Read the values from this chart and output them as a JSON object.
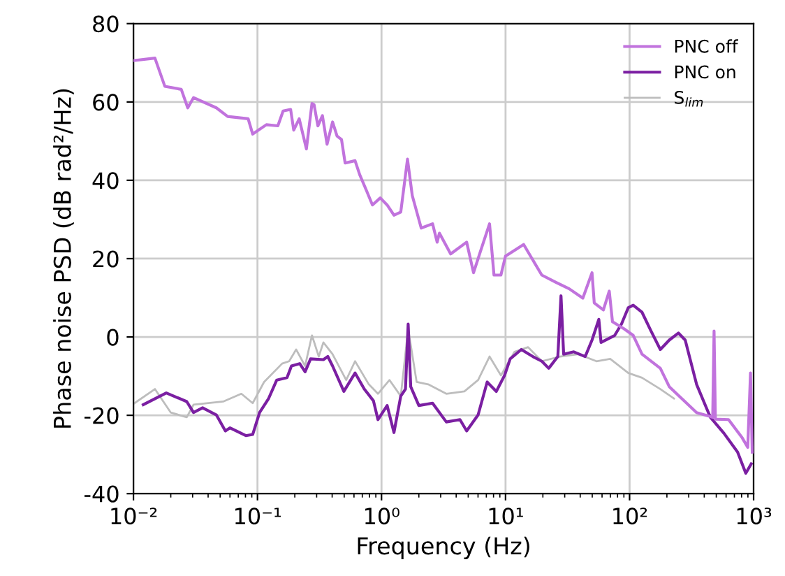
{
  "chart_data": {
    "type": "line",
    "xlabel": "Frequency (Hz)",
    "ylabel": "Phase noise PSD (dB rad²/Hz)",
    "log": "x",
    "grid": true,
    "legend": "top right",
    "marker": "none",
    "line_style": "solid",
    "xlim": [
      0.01,
      1000
    ],
    "ylim": [
      -40,
      80
    ],
    "xticks": [
      {
        "value": 0.01,
        "label": "10⁻²"
      },
      {
        "value": 0.1,
        "label": "10⁻¹"
      },
      {
        "value": 1,
        "label": "10⁰"
      },
      {
        "value": 10,
        "label": "10¹"
      },
      {
        "value": 100,
        "label": "10²"
      },
      {
        "value": 1000,
        "label": "10³"
      }
    ],
    "yticks": [
      -40,
      -20,
      0,
      20,
      40,
      60,
      80
    ],
    "series": [
      {
        "name": "PNC off",
        "color": "#c173dd",
        "x": [
          0.0102,
          0.0149,
          0.0179,
          0.0243,
          0.0274,
          0.0305,
          0.0466,
          0.0575,
          0.0841,
          0.0915,
          0.118,
          0.146,
          0.161,
          0.185,
          0.196,
          0.217,
          0.248,
          0.275,
          0.286,
          0.307,
          0.334,
          0.364,
          0.403,
          0.438,
          0.476,
          0.509,
          0.612,
          0.668,
          0.758,
          0.845,
          0.977,
          1.11,
          1.26,
          1.43,
          1.62,
          1.77,
          2.09,
          2.58,
          2.81,
          2.93,
          3.61,
          4.86,
          5.52,
          6.27,
          7.43,
          8.07,
          9.18,
          9.98,
          14.0,
          19.6,
          25.3,
          32.6,
          42.0,
          49.8,
          51.9,
          61.5,
          68.6,
          72.8,
          90.0,
          107,
          126,
          177,
          209,
          347,
          468,
          480,
          492,
          628,
          811,
          897,
          944,
          975
        ],
        "values": [
          70.6,
          71.2,
          64.0,
          63.2,
          58.5,
          61.1,
          58.5,
          56.3,
          55.7,
          51.8,
          54.2,
          53.9,
          57.7,
          58.1,
          52.8,
          55.7,
          48.0,
          59.6,
          59.3,
          53.9,
          56.5,
          49.2,
          54.9,
          51.3,
          50.4,
          44.4,
          45.0,
          41.4,
          37.3,
          33.7,
          35.5,
          33.7,
          31.1,
          31.9,
          45.4,
          36.1,
          27.8,
          28.9,
          24.2,
          26.5,
          21.2,
          24.2,
          16.4,
          21.8,
          28.9,
          15.8,
          15.8,
          20.6,
          23.6,
          15.8,
          14.0,
          12.3,
          9.9,
          16.4,
          8.7,
          6.9,
          11.7,
          3.9,
          2.1,
          0.4,
          -4.4,
          -8.0,
          -12.7,
          -19.3,
          -20.5,
          1.5,
          -21.0,
          -21.1,
          -25.8,
          -28.2,
          -9.2,
          -29.4
        ]
      },
      {
        "name": "PNC on",
        "color": "#7b1fa2",
        "x": [
          0.012,
          0.0184,
          0.0269,
          0.0305,
          0.0361,
          0.0466,
          0.0551,
          0.0601,
          0.0806,
          0.0915,
          0.104,
          0.123,
          0.143,
          0.173,
          0.188,
          0.219,
          0.242,
          0.268,
          0.34,
          0.369,
          0.403,
          0.497,
          0.612,
          0.726,
          0.861,
          0.936,
          1.11,
          1.26,
          1.43,
          1.56,
          1.64,
          1.72,
          2.0,
          2.58,
          3.33,
          4.29,
          4.86,
          6.01,
          7.11,
          8.43,
          9.82,
          10.9,
          13.4,
          16.6,
          19.6,
          22.3,
          26.4,
          28.0,
          29.4,
          35.5,
          43.9,
          49.8,
          56.5,
          58.9,
          75.9,
          86.1,
          97.7,
          107,
          126,
          149,
          177,
          209,
          248,
          281,
          347,
          448,
          577,
          743,
          865,
          957
        ],
        "values": [
          -17.3,
          -14.3,
          -16.5,
          -19.3,
          -18.1,
          -19.9,
          -24.0,
          -23.2,
          -25.2,
          -24.9,
          -19.3,
          -15.7,
          -11.0,
          -10.4,
          -7.4,
          -6.8,
          -8.9,
          -5.6,
          -5.8,
          -5.0,
          -7.4,
          -13.9,
          -9.2,
          -13.3,
          -16.3,
          -21.1,
          -17.5,
          -24.4,
          -15.1,
          -13.3,
          3.3,
          -12.7,
          -17.5,
          -16.9,
          -21.7,
          -21.1,
          -24.0,
          -19.9,
          -11.5,
          -13.9,
          -9.8,
          -5.6,
          -3.2,
          -5.0,
          -6.2,
          -8.0,
          -5.0,
          10.5,
          -4.4,
          -3.8,
          -5.0,
          -0.8,
          4.5,
          -1.4,
          0.4,
          3.3,
          7.5,
          8.1,
          6.3,
          1.5,
          -3.2,
          -0.8,
          1.0,
          -0.8,
          -12.1,
          -20.5,
          -24.6,
          -29.4,
          -34.8,
          -32.4
        ]
      },
      {
        "name": "S$_{lim}$",
        "color": "#bdbdbd",
        "x": [
          0.0102,
          0.0149,
          0.02,
          0.0269,
          0.0305,
          0.0529,
          0.0741,
          0.0915,
          0.113,
          0.158,
          0.18,
          0.205,
          0.242,
          0.275,
          0.312,
          0.34,
          0.403,
          0.519,
          0.612,
          0.79,
          0.936,
          1.16,
          1.43,
          1.64,
          1.92,
          2.38,
          3.33,
          4.66,
          6.01,
          7.43,
          9.18,
          11.8,
          15.2,
          19.6,
          27.5,
          38.6,
          54.1,
          69.8,
          97.7,
          126,
          177,
          228
        ],
        "values": [
          -16.9,
          -13.3,
          -19.3,
          -20.5,
          -17.3,
          -16.5,
          -14.5,
          -16.9,
          -11.5,
          -6.8,
          -6.2,
          -3.2,
          -7.4,
          0.4,
          -5.0,
          -1.4,
          -4.4,
          -11.0,
          -6.2,
          -12.1,
          -14.5,
          -11.0,
          -15.1,
          2.1,
          -11.5,
          -12.1,
          -14.5,
          -13.9,
          -11.0,
          -5.0,
          -9.8,
          -3.8,
          -2.6,
          -6.2,
          -5.0,
          -4.4,
          -6.2,
          -5.6,
          -9.2,
          -10.4,
          -13.3,
          -15.7
        ]
      }
    ]
  }
}
